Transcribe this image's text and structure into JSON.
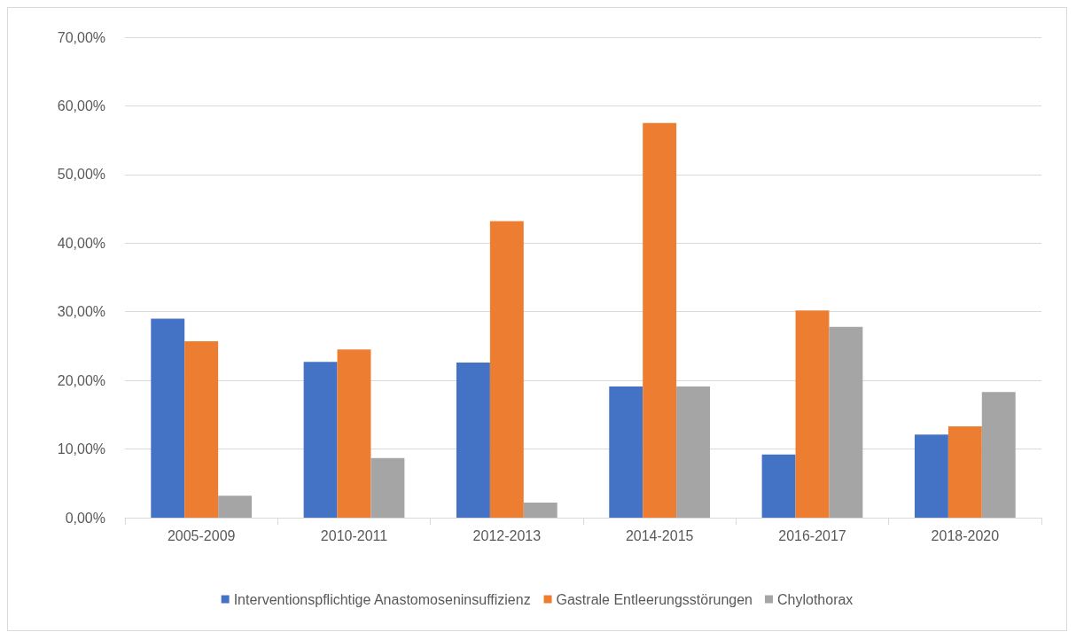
{
  "chart_data": {
    "type": "bar",
    "categories": [
      "2005-2009",
      "2010-2011",
      "2012-2013",
      "2014-2015",
      "2016-2017",
      "2018-2020"
    ],
    "series": [
      {
        "name": "Interventionspflichtige Anastomoseninsuffizienz",
        "color": "#4472c4",
        "values": [
          29.0,
          22.7,
          22.6,
          19.1,
          9.2,
          12.1
        ]
      },
      {
        "name": "Gastrale Entleerungsstörungen",
        "color": "#ed7d31",
        "values": [
          25.7,
          24.5,
          43.2,
          57.5,
          30.2,
          13.3
        ]
      },
      {
        "name": "Chylothorax",
        "color": "#a5a5a5",
        "values": [
          3.2,
          8.7,
          2.2,
          19.1,
          27.8,
          18.3
        ]
      }
    ],
    "ylim": [
      0,
      70
    ],
    "yticks": [
      {
        "value": 0,
        "label": "0,00%"
      },
      {
        "value": 10,
        "label": "10,00%"
      },
      {
        "value": 20,
        "label": "20,00%"
      },
      {
        "value": 30,
        "label": "30,00%"
      },
      {
        "value": 40,
        "label": "40,00%"
      },
      {
        "value": 50,
        "label": "50,00%"
      },
      {
        "value": 60,
        "label": "60,00%"
      },
      {
        "value": 70,
        "label": "70,00%"
      }
    ],
    "grid": "y",
    "legend": "bottom"
  }
}
